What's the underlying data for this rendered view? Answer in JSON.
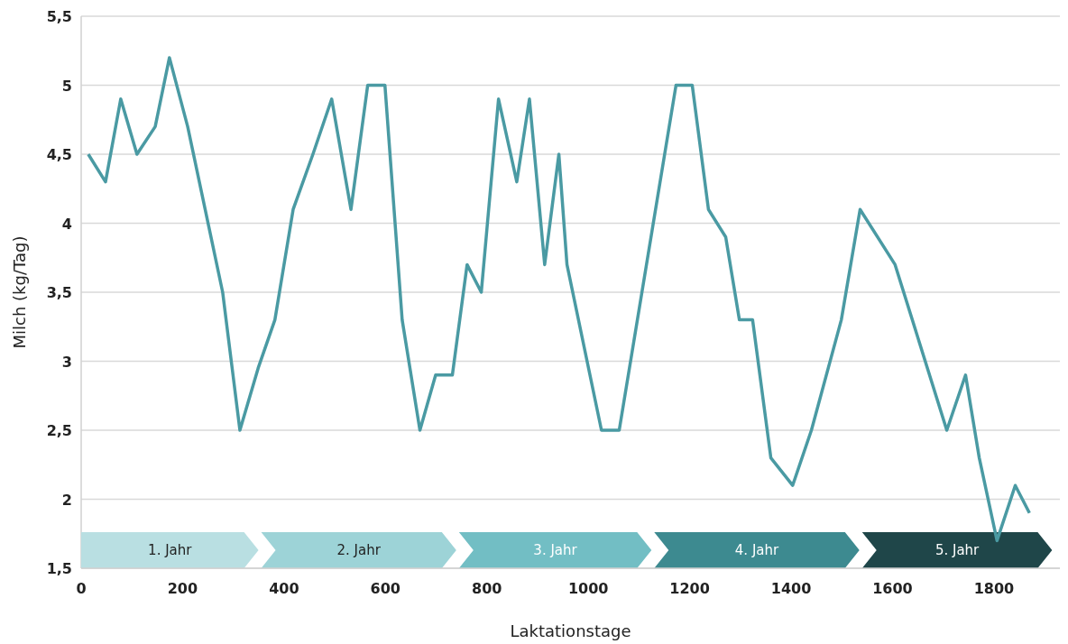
{
  "chart_data": {
    "type": "line",
    "xlabel": "Laktationstage",
    "ylabel": "Milch (kg/Tag)",
    "series": [
      {
        "color": "#4a9aa3",
        "x": [
          14,
          48,
          78,
          110,
          146,
          174,
          210,
          279,
          313,
          349,
          382,
          418,
          457,
          494,
          532,
          565,
          599,
          633,
          668,
          699,
          732,
          761,
          789,
          823,
          859,
          884,
          914,
          942,
          958,
          1026,
          1061,
          1173,
          1205,
          1237,
          1271,
          1298,
          1324,
          1360,
          1403,
          1440,
          1499,
          1536,
          1605,
          1707,
          1744,
          1771,
          1806,
          1842,
          1870
        ],
        "values": [
          4.5,
          4.3,
          4.9,
          4.5,
          4.7,
          5.2,
          4.7,
          3.5,
          2.5,
          2.95,
          3.3,
          4.1,
          4.5,
          4.9,
          4.1,
          5.0,
          5.0,
          3.3,
          2.5,
          2.9,
          2.9,
          3.7,
          3.5,
          4.9,
          4.3,
          4.9,
          3.7,
          4.5,
          3.7,
          2.5,
          2.5,
          5.0,
          5.0,
          4.1,
          3.9,
          3.3,
          3.3,
          2.3,
          2.1,
          2.5,
          3.3,
          4.1,
          3.7,
          2.5,
          2.9,
          2.3,
          1.7,
          2.1,
          1.9
        ]
      }
    ],
    "xlim": [
      0,
      1930
    ],
    "xticks": [
      0,
      200,
      400,
      600,
      800,
      1000,
      1200,
      1400,
      1600,
      1800
    ],
    "ylim": [
      1.5,
      5.5
    ],
    "yticks": [
      {
        "value": 1.5,
        "label": "1,5"
      },
      {
        "value": 2,
        "label": "2"
      },
      {
        "value": 2.5,
        "label": "2,5"
      },
      {
        "value": 3,
        "label": "3"
      },
      {
        "value": 3.5,
        "label": "3,5"
      },
      {
        "value": 4,
        "label": "4"
      },
      {
        "value": 4.5,
        "label": "4,5"
      },
      {
        "value": 5,
        "label": "5"
      },
      {
        "value": 5.5,
        "label": "5,5"
      }
    ],
    "grid": "y",
    "marker": "none",
    "line_style": "solid",
    "bands": [
      {
        "axis": "x",
        "from": 0,
        "to": 355,
        "label": "1. Jahr",
        "color": "#b9dfe2"
      },
      {
        "axis": "x",
        "from": 355,
        "to": 745,
        "label": "2. Jahr",
        "color": "#9dd3d7"
      },
      {
        "axis": "x",
        "from": 745,
        "to": 1130,
        "label": "3. Jahr",
        "color": "#72bec4"
      },
      {
        "axis": "x",
        "from": 1130,
        "to": 1540,
        "label": "4. Jahr",
        "color": "#3d8a90"
      },
      {
        "axis": "x",
        "from": 1540,
        "to": 1920,
        "label": "5. Jahr",
        "color": "#1f4649"
      }
    ]
  }
}
